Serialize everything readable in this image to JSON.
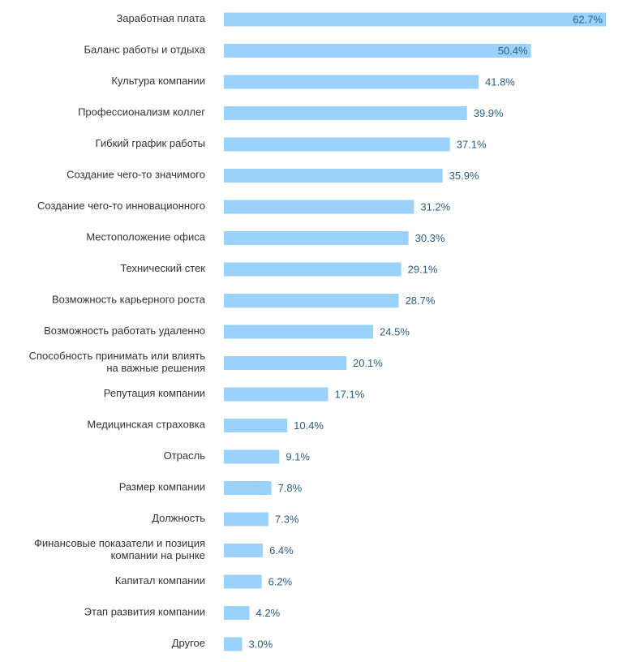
{
  "chart_data": {
    "type": "bar",
    "orientation": "horizontal",
    "color": "#9ad2fb",
    "categories": [
      "Заработная плата",
      "Баланс работы и отдыха",
      "Культура компании",
      "Профессионализм коллег",
      "Гибкий график работы",
      "Создание чего-то значимого",
      "Создание чего-то инновационного",
      "Местоположение офиса",
      "Технический стек",
      "Возможность карьерного роста",
      "Возможность работать удаленно",
      "Способность принимать или влиять\nна важные решения",
      "Репутация компании",
      "Медицинская страховка",
      "Отрасль",
      "Размер компании",
      "Должность",
      "Финансовые показатели и позиция\nкомпании на рынке",
      "Капитал компании",
      "Этап развития компании",
      "Другое"
    ],
    "values": [
      62.7,
      50.4,
      41.8,
      39.9,
      37.1,
      35.9,
      31.2,
      30.3,
      29.1,
      28.7,
      24.5,
      20.1,
      17.1,
      10.4,
      9.1,
      7.8,
      7.3,
      6.4,
      6.2,
      4.2,
      3.0
    ],
    "value_labels": [
      "62.7%",
      "50.4%",
      "41.8%",
      "39.9%",
      "37.1%",
      "35.9%",
      "31.2%",
      "30.3%",
      "29.1%",
      "28.7%",
      "24.5%",
      "20.1%",
      "17.1%",
      "10.4%",
      "9.1%",
      "7.8%",
      "7.3%",
      "6.4%",
      "6.2%",
      "4.2%",
      "3.0%"
    ]
  }
}
